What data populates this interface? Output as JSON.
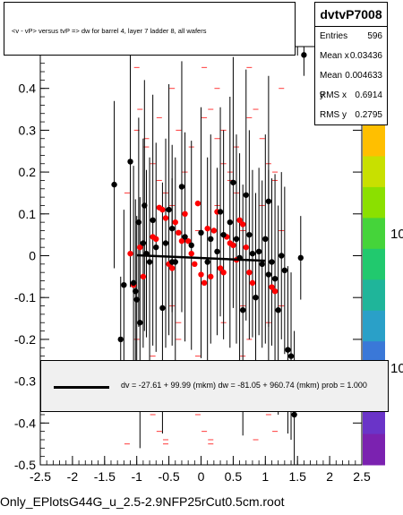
{
  "footer_label": "Only_EPlotsG44G_u_2.5-2.9NFP25rCut0.5cm.root",
  "title_text": "<v - vP>       versus  tvP => dw for barrel 4, layer 7 ladder 8, all wafers",
  "stats": {
    "name": "dvtvP7008",
    "rows": [
      {
        "label": "Entries",
        "value": "596"
      },
      {
        "label": "Mean x",
        "value": "0.03436"
      },
      {
        "label": "Mean y",
        "value": "0.004633"
      },
      {
        "label": "RMS x",
        "value": "0.6914"
      },
      {
        "label": "RMS y",
        "value": "0.2795"
      }
    ]
  },
  "legend_text": "dv =  -27.61 + 99.99 (mkm) dw =  -81.05 + 960.74 (mkm) prob = 1.000",
  "palette_labels": [
    "10",
    "10"
  ],
  "colors": {
    "black_series": "#000000",
    "red_series": "#ff0000",
    "fit_line": "#000000",
    "palette_top": "#ffbf00"
  },
  "chart_data": {
    "type": "scatter",
    "title": "<v - vP>       versus  tvP => dw for barrel 4, layer 7 ladder 8, all wafers",
    "xlim": [
      -2.5,
      2.5
    ],
    "ylim": [
      -0.5,
      0.5
    ],
    "x_ticks": [
      "-2.5",
      "-2",
      "-1.5",
      "-1",
      "-0.5",
      "0",
      "0.5",
      "1",
      "1.5",
      "2",
      "2.5"
    ],
    "y_ticks": [
      "-0.5",
      "-0.4",
      "-0.3",
      "-0.2",
      "-0.1",
      "0",
      "0.1",
      "0.2",
      "0.3",
      "0.4"
    ],
    "grid": false,
    "fit_line": {
      "x": [
        -1.0,
        1.0
      ],
      "y": [
        0.001,
        -0.012
      ]
    },
    "series": [
      {
        "color": "black",
        "points": [
          {
            "x": -1.35,
            "y": 0.17,
            "err": 0.2
          },
          {
            "x": -1.25,
            "y": -0.2,
            "err": 0.15
          },
          {
            "x": -1.2,
            "y": -0.07,
            "err": 0.18
          },
          {
            "x": -1.1,
            "y": 0.225,
            "err": 0.3
          },
          {
            "x": -1.05,
            "y": -0.065,
            "err": 0.28
          },
          {
            "x": -1.02,
            "y": -0.085,
            "err": 0.22
          },
          {
            "x": -1.0,
            "y": -0.105,
            "err": 0.2
          },
          {
            "x": -0.97,
            "y": 0.08,
            "err": 0.25
          },
          {
            "x": -0.95,
            "y": -0.16,
            "err": 0.3
          },
          {
            "x": -0.9,
            "y": 0.03,
            "err": 0.25
          },
          {
            "x": -0.88,
            "y": 0.12,
            "err": 0.3
          },
          {
            "x": -0.85,
            "y": 0.005,
            "err": 0.2
          },
          {
            "x": -0.8,
            "y": -0.015,
            "err": 0.25
          },
          {
            "x": -0.75,
            "y": 0.085,
            "err": 0.3
          },
          {
            "x": -0.7,
            "y": 0.02,
            "err": 0.25
          },
          {
            "x": -0.6,
            "y": -0.125,
            "err": 0.3
          },
          {
            "x": -0.55,
            "y": 0.03,
            "err": 0.25
          },
          {
            "x": -0.5,
            "y": 0.11,
            "err": 0.3
          },
          {
            "x": -0.45,
            "y": -0.015,
            "err": 0.2
          },
          {
            "x": -0.45,
            "y": 0.065,
            "err": 0.2
          },
          {
            "x": -0.4,
            "y": -0.015,
            "err": 0.25
          },
          {
            "x": -0.3,
            "y": 0.165,
            "err": 0.3
          },
          {
            "x": -0.25,
            "y": 0.045,
            "err": 0.25
          },
          {
            "x": -0.15,
            "y": 0.025,
            "err": 0.25
          },
          {
            "x": 0.0,
            "y": 0.055,
            "err": 0.3
          },
          {
            "x": 0.1,
            "y": -0.015,
            "err": 0.25
          },
          {
            "x": 0.15,
            "y": 0.04,
            "err": 0.25
          },
          {
            "x": 0.25,
            "y": 0.01,
            "err": 0.2
          },
          {
            "x": 0.3,
            "y": 0.105,
            "err": 0.25
          },
          {
            "x": 0.35,
            "y": 0.05,
            "err": 0.25
          },
          {
            "x": 0.45,
            "y": 0.08,
            "err": 0.3
          },
          {
            "x": 0.5,
            "y": 0.175,
            "err": 0.3
          },
          {
            "x": 0.55,
            "y": 0.04,
            "err": 0.25
          },
          {
            "x": 0.6,
            "y": -0.005,
            "err": 0.25
          },
          {
            "x": 0.65,
            "y": -0.13,
            "err": 0.3
          },
          {
            "x": 0.7,
            "y": 0.145,
            "err": 0.3
          },
          {
            "x": 0.75,
            "y": 0.05,
            "err": 0.25
          },
          {
            "x": 0.8,
            "y": 0.005,
            "err": 0.2
          },
          {
            "x": 0.85,
            "y": -0.1,
            "err": 0.25
          },
          {
            "x": 0.9,
            "y": 0.01,
            "err": 0.2
          },
          {
            "x": 0.95,
            "y": -0.02,
            "err": 0.2
          },
          {
            "x": 1.0,
            "y": 0.04,
            "err": 0.25
          },
          {
            "x": 1.05,
            "y": -0.045,
            "err": 0.25
          },
          {
            "x": 1.1,
            "y": -0.015,
            "err": 0.2
          },
          {
            "x": 1.15,
            "y": -0.055,
            "err": 0.25
          },
          {
            "x": 1.2,
            "y": -0.13,
            "err": 0.25
          },
          {
            "x": 1.25,
            "y": 0.0,
            "err": 0.2
          },
          {
            "x": 1.3,
            "y": -0.035,
            "err": 0.2
          },
          {
            "x": 1.35,
            "y": -0.225,
            "err": 0.2
          },
          {
            "x": 1.4,
            "y": -0.24,
            "err": 0.2
          },
          {
            "x": 1.45,
            "y": -0.38,
            "err": 0.2
          },
          {
            "x": 1.55,
            "y": -0.005,
            "err": 0.1
          },
          {
            "x": 1.6,
            "y": 0.48,
            "err": 0.05
          },
          {
            "x": 1.05,
            "y": 0.13,
            "err": 0.3
          }
        ]
      },
      {
        "color": "red",
        "points": [
          {
            "x": -1.1,
            "y": 0.005
          },
          {
            "x": -1.05,
            "y": -0.07
          },
          {
            "x": -0.95,
            "y": 0.02
          },
          {
            "x": -0.9,
            "y": -0.05
          },
          {
            "x": -0.75,
            "y": 0.045
          },
          {
            "x": -0.7,
            "y": 0.04
          },
          {
            "x": -0.65,
            "y": 0.115
          },
          {
            "x": -0.6,
            "y": 0.11
          },
          {
            "x": -0.55,
            "y": 0.09
          },
          {
            "x": -0.5,
            "y": -0.02
          },
          {
            "x": -0.45,
            "y": -0.03
          },
          {
            "x": -0.4,
            "y": 0.08
          },
          {
            "x": -0.35,
            "y": 0.055
          },
          {
            "x": -0.3,
            "y": 0.035
          },
          {
            "x": -0.25,
            "y": 0.1
          },
          {
            "x": -0.15,
            "y": 0.005
          },
          {
            "x": -0.1,
            "y": -0.02
          },
          {
            "x": -0.05,
            "y": 0.125
          },
          {
            "x": 0.0,
            "y": -0.045
          },
          {
            "x": 0.05,
            "y": -0.065
          },
          {
            "x": 0.1,
            "y": 0.065
          },
          {
            "x": 0.15,
            "y": -0.05
          },
          {
            "x": 0.2,
            "y": 0.06
          },
          {
            "x": 0.25,
            "y": 0.105
          },
          {
            "x": 0.3,
            "y": -0.03
          },
          {
            "x": 0.35,
            "y": -0.04
          },
          {
            "x": 0.45,
            "y": 0.03
          },
          {
            "x": 0.5,
            "y": 0.025
          },
          {
            "x": 0.55,
            "y": -0.01
          },
          {
            "x": 0.6,
            "y": 0.085
          },
          {
            "x": 0.65,
            "y": 0.075
          },
          {
            "x": 0.7,
            "y": 0.02
          },
          {
            "x": 0.75,
            "y": -0.04
          },
          {
            "x": 0.8,
            "y": -0.065
          },
          {
            "x": 1.1,
            "y": -0.075
          },
          {
            "x": 1.15,
            "y": -0.085
          },
          {
            "x": -0.2,
            "y": 0.035
          },
          {
            "x": 0.4,
            "y": 0.045
          }
        ]
      }
    ]
  }
}
